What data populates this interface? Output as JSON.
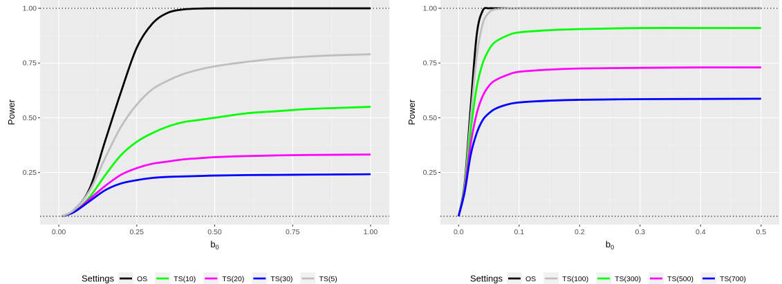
{
  "chart_data": [
    {
      "type": "line",
      "xlabel": "b",
      "xlabel_sub": "0",
      "ylabel": "Power",
      "xlim": [
        -0.06,
        1.06
      ],
      "ylim": [
        0.012,
        1.038
      ],
      "x_ticks": [
        0.0,
        0.25,
        0.5,
        0.75,
        1.0
      ],
      "x_tick_labels": [
        "0.00",
        "0.25",
        "0.50",
        "0.75",
        "1.00"
      ],
      "y_ticks": [
        0.25,
        0.5,
        0.75,
        1.0
      ],
      "y_tick_labels": [
        "0.25",
        "0.50",
        "0.75",
        "1.00"
      ],
      "reference_lines": [
        0.05,
        1.0
      ],
      "grid": true,
      "legend_title": "Settings",
      "legend_position": "bottom",
      "x": [
        0.01,
        0.05,
        0.1,
        0.15,
        0.2,
        0.25,
        0.3,
        0.35,
        0.4,
        0.45,
        0.5,
        0.6,
        0.7,
        0.8,
        0.9,
        1.0
      ],
      "series": [
        {
          "name": "OS",
          "color": "#000000",
          "values": [
            0.05,
            0.08,
            0.18,
            0.4,
            0.62,
            0.82,
            0.93,
            0.98,
            0.995,
            0.999,
            1.0,
            1.0,
            1.0,
            1.0,
            1.0,
            1.0
          ]
        },
        {
          "name": "TS(10)",
          "color": "#00ff00",
          "values": [
            0.05,
            0.07,
            0.14,
            0.24,
            0.33,
            0.39,
            0.43,
            0.46,
            0.48,
            0.49,
            0.5,
            0.52,
            0.53,
            0.54,
            0.545,
            0.55
          ]
        },
        {
          "name": "TS(20)",
          "color": "#ff00ff",
          "values": [
            0.05,
            0.07,
            0.13,
            0.19,
            0.24,
            0.27,
            0.29,
            0.3,
            0.31,
            0.315,
            0.32,
            0.325,
            0.328,
            0.33,
            0.331,
            0.332
          ]
        },
        {
          "name": "TS(30)",
          "color": "#0000ff",
          "values": [
            0.05,
            0.07,
            0.12,
            0.17,
            0.2,
            0.215,
            0.225,
            0.23,
            0.232,
            0.234,
            0.236,
            0.238,
            0.239,
            0.24,
            0.241,
            0.242
          ]
        },
        {
          "name": "TS(5)",
          "color": "#bebebe",
          "values": [
            0.05,
            0.08,
            0.17,
            0.32,
            0.46,
            0.56,
            0.63,
            0.67,
            0.7,
            0.72,
            0.735,
            0.755,
            0.77,
            0.78,
            0.786,
            0.79
          ]
        }
      ]
    },
    {
      "type": "line",
      "xlabel": "b",
      "xlabel_sub": "0",
      "ylabel": "Power",
      "xlim": [
        -0.03,
        0.53
      ],
      "ylim": [
        0.012,
        1.038
      ],
      "x_ticks": [
        0.0,
        0.1,
        0.2,
        0.3,
        0.4,
        0.5
      ],
      "x_tick_labels": [
        "0.0",
        "0.1",
        "0.2",
        "0.3",
        "0.4",
        "0.5"
      ],
      "y_ticks": [
        0.25,
        0.5,
        0.75,
        1.0
      ],
      "y_tick_labels": [
        "0.25",
        "0.50",
        "0.75",
        "1.00"
      ],
      "reference_lines": [
        0.05,
        1.0
      ],
      "grid": true,
      "legend_title": "Settings",
      "legend_position": "bottom",
      "x": [
        0.0,
        0.01,
        0.02,
        0.03,
        0.04,
        0.05,
        0.06,
        0.08,
        0.1,
        0.15,
        0.2,
        0.3,
        0.4,
        0.5
      ],
      "series": [
        {
          "name": "OS",
          "color": "#000000",
          "values": [
            0.05,
            0.2,
            0.55,
            0.88,
            0.99,
            1.0,
            1.0,
            1.0,
            1.0,
            1.0,
            1.0,
            1.0,
            1.0,
            1.0
          ]
        },
        {
          "name": "TS(100)",
          "color": "#bebebe",
          "values": [
            0.05,
            0.19,
            0.5,
            0.78,
            0.93,
            0.98,
            0.995,
            1.0,
            1.0,
            1.0,
            1.0,
            1.0,
            1.0,
            1.0
          ]
        },
        {
          "name": "TS(300)",
          "color": "#00ff00",
          "values": [
            0.05,
            0.18,
            0.44,
            0.64,
            0.75,
            0.81,
            0.845,
            0.875,
            0.89,
            0.9,
            0.905,
            0.91,
            0.91,
            0.91
          ]
        },
        {
          "name": "TS(500)",
          "color": "#ff00ff",
          "values": [
            0.05,
            0.17,
            0.38,
            0.52,
            0.6,
            0.645,
            0.67,
            0.695,
            0.71,
            0.72,
            0.725,
            0.728,
            0.73,
            0.73
          ]
        },
        {
          "name": "TS(700)",
          "color": "#0000ff",
          "values": [
            0.05,
            0.16,
            0.33,
            0.43,
            0.49,
            0.52,
            0.54,
            0.56,
            0.57,
            0.578,
            0.582,
            0.585,
            0.586,
            0.587
          ]
        }
      ]
    }
  ]
}
